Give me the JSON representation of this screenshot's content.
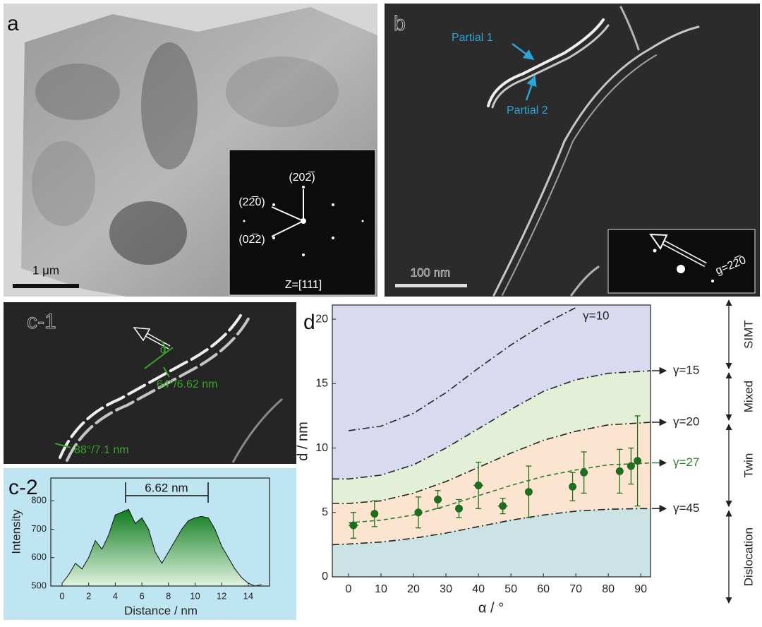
{
  "panel_a": {
    "label": "a",
    "scale_bar": "1 μm",
    "diffraction_spots": [
      "(202̅)",
      "(22̅0)",
      "(02̅2)"
    ],
    "zone_axis": "Z=[111]"
  },
  "panel_b": {
    "label": "b",
    "annotations": [
      "Partial 1",
      "Partial 2"
    ],
    "scale_bar": "100 nm",
    "g_vector": "g=22̅0"
  },
  "panel_c1": {
    "label": "c-1",
    "angle_symbol": "α",
    "annotations": [
      "64°/6.62 nm",
      "88°/7.1 nm"
    ]
  },
  "chart_data": [
    {
      "type": "area",
      "label": "c-2",
      "annotation": "6.62 nm",
      "x_label": "Distance / nm",
      "y_label": "Intensity",
      "x": [
        0,
        0.5,
        1,
        1.5,
        2,
        2.5,
        3,
        3.5,
        4,
        4.5,
        5,
        5.5,
        6,
        6.5,
        7,
        7.5,
        8,
        8.5,
        9,
        9.5,
        10,
        10.5,
        11,
        11.5,
        12,
        12.5,
        13,
        13.5,
        14,
        14.5,
        15
      ],
      "values": [
        510,
        540,
        580,
        560,
        600,
        660,
        630,
        680,
        750,
        760,
        770,
        720,
        740,
        700,
        620,
        580,
        620,
        660,
        700,
        730,
        740,
        745,
        740,
        700,
        640,
        600,
        560,
        530,
        510,
        500,
        505
      ],
      "color": "#1f8a2a",
      "background": "#bfe4f2",
      "xlim": [
        -0.85,
        15.6
      ],
      "xticks": [
        0,
        2,
        4,
        6,
        8,
        10,
        12,
        14
      ],
      "ylim": [
        500,
        880
      ],
      "yticks": [
        500,
        600,
        700,
        800
      ]
    },
    {
      "type": "line",
      "label": "d",
      "x_label": "α / °",
      "y_label": "d / nm",
      "x": [
        -5,
        0,
        10,
        20,
        30,
        40,
        50,
        60,
        70,
        80,
        90,
        93
      ],
      "series": [
        {
          "name": "γ=10",
          "color": "#222222",
          "style": "dashdot",
          "values": [
            null,
            11.35,
            11.7,
            12.7,
            14.3,
            16.2,
            18.0,
            19.6,
            20.9,
            null,
            null,
            null
          ]
        },
        {
          "name": "γ=15",
          "color": "#222222",
          "style": "dashdot",
          "values": [
            7.6,
            7.6,
            7.9,
            8.7,
            10.0,
            11.5,
            13.0,
            14.4,
            15.3,
            15.8,
            15.95,
            16.0
          ]
        },
        {
          "name": "γ=20",
          "color": "#222222",
          "style": "dashdot",
          "values": [
            5.7,
            5.7,
            5.9,
            6.5,
            7.4,
            8.5,
            9.6,
            10.6,
            11.3,
            11.8,
            11.95,
            12.0
          ]
        },
        {
          "name": "γ=27",
          "color": "#2e7d32",
          "style": "dashed",
          "values": [
            null,
            4.2,
            4.4,
            4.8,
            5.5,
            6.3,
            7.1,
            7.8,
            8.3,
            8.7,
            8.8,
            8.85
          ]
        },
        {
          "name": "γ=45",
          "color": "#222222",
          "style": "dashdot",
          "values": [
            2.5,
            2.55,
            2.7,
            3.0,
            3.4,
            3.9,
            4.4,
            4.8,
            5.1,
            5.25,
            5.3,
            5.3
          ]
        }
      ],
      "points": {
        "color": "#1f6e1f",
        "x": [
          1.5,
          8,
          21.5,
          27.5,
          34,
          40,
          47.5,
          55.5,
          69,
          72.5,
          83.5,
          87,
          89
        ],
        "values": [
          4.0,
          4.9,
          5.0,
          6.0,
          5.3,
          7.1,
          5.5,
          6.6,
          7.0,
          8.1,
          8.2,
          8.6,
          9.0
        ],
        "xerr": [
          1.5,
          0,
          0,
          0,
          0,
          1.5,
          1.5,
          0,
          0,
          0,
          0,
          0,
          0
        ],
        "yerr": [
          1.0,
          1.0,
          1.2,
          0.7,
          0.7,
          1.8,
          0.6,
          2.0,
          1.1,
          1.6,
          1.7,
          1.4,
          3.5
        ]
      },
      "regions": [
        {
          "label": "SIMT",
          "color": "#d9d9ef"
        },
        {
          "label": "Mixed",
          "color": "#e3efd6"
        },
        {
          "label": "Twin",
          "color": "#fbe5d0"
        },
        {
          "label": "Dislocation",
          "color": "#cbe3e4"
        }
      ],
      "xlim": [
        -5,
        93
      ],
      "xticks": [
        0,
        10,
        20,
        30,
        40,
        50,
        60,
        70,
        80,
        90
      ],
      "ylim": [
        0,
        21.1
      ],
      "yticks": [
        0,
        5,
        10,
        15,
        20
      ]
    }
  ]
}
